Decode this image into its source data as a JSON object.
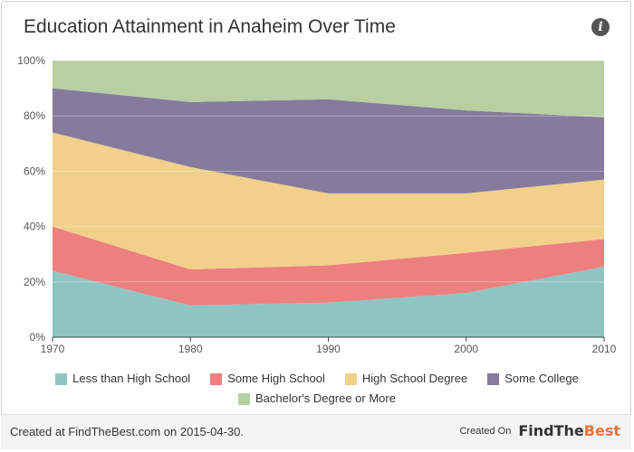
{
  "title": "Education Attainment in Anaheim Over Time",
  "info_icon": "info-icon",
  "footer": {
    "created_text": "Created at FindTheBest.com on 2015-04-30.",
    "created_on_label": "Created On",
    "brand_main": "FindThe",
    "brand_accent": "Best"
  },
  "colors": {
    "less_than_high_school": "#8fc4c4",
    "some_high_school": "#ee7f7f",
    "high_school_degree": "#f0d08a",
    "some_college": "#857b9c",
    "bachelors": "#b8cfa2"
  },
  "chart_data": {
    "type": "area",
    "stacked": true,
    "title": "Education Attainment in Anaheim Over Time",
    "x": [
      "1970",
      "1980",
      "1990",
      "2000",
      "2010"
    ],
    "y_ticks": [
      "0%",
      "20%",
      "40%",
      "60%",
      "80%",
      "100%"
    ],
    "ylim": [
      0,
      100
    ],
    "grid": true,
    "legend_position": "bottom",
    "series": [
      {
        "name": "Less than High School",
        "color": "#8fc4c4",
        "values": [
          24,
          11.5,
          12.5,
          16,
          25.5
        ]
      },
      {
        "name": "Some High School",
        "color": "#ee7f7f",
        "values": [
          16,
          13,
          13.5,
          14.5,
          10
        ]
      },
      {
        "name": "High School Degree",
        "color": "#f0d08a",
        "values": [
          34,
          37,
          26,
          21.5,
          21.5
        ]
      },
      {
        "name": "Some College",
        "color": "#857b9c",
        "values": [
          16,
          23.5,
          34,
          30,
          22.5
        ]
      },
      {
        "name": "Bachelor's Degree or More",
        "color": "#b8cfa2",
        "values": [
          10,
          15,
          14,
          18,
          20.5
        ]
      }
    ]
  }
}
